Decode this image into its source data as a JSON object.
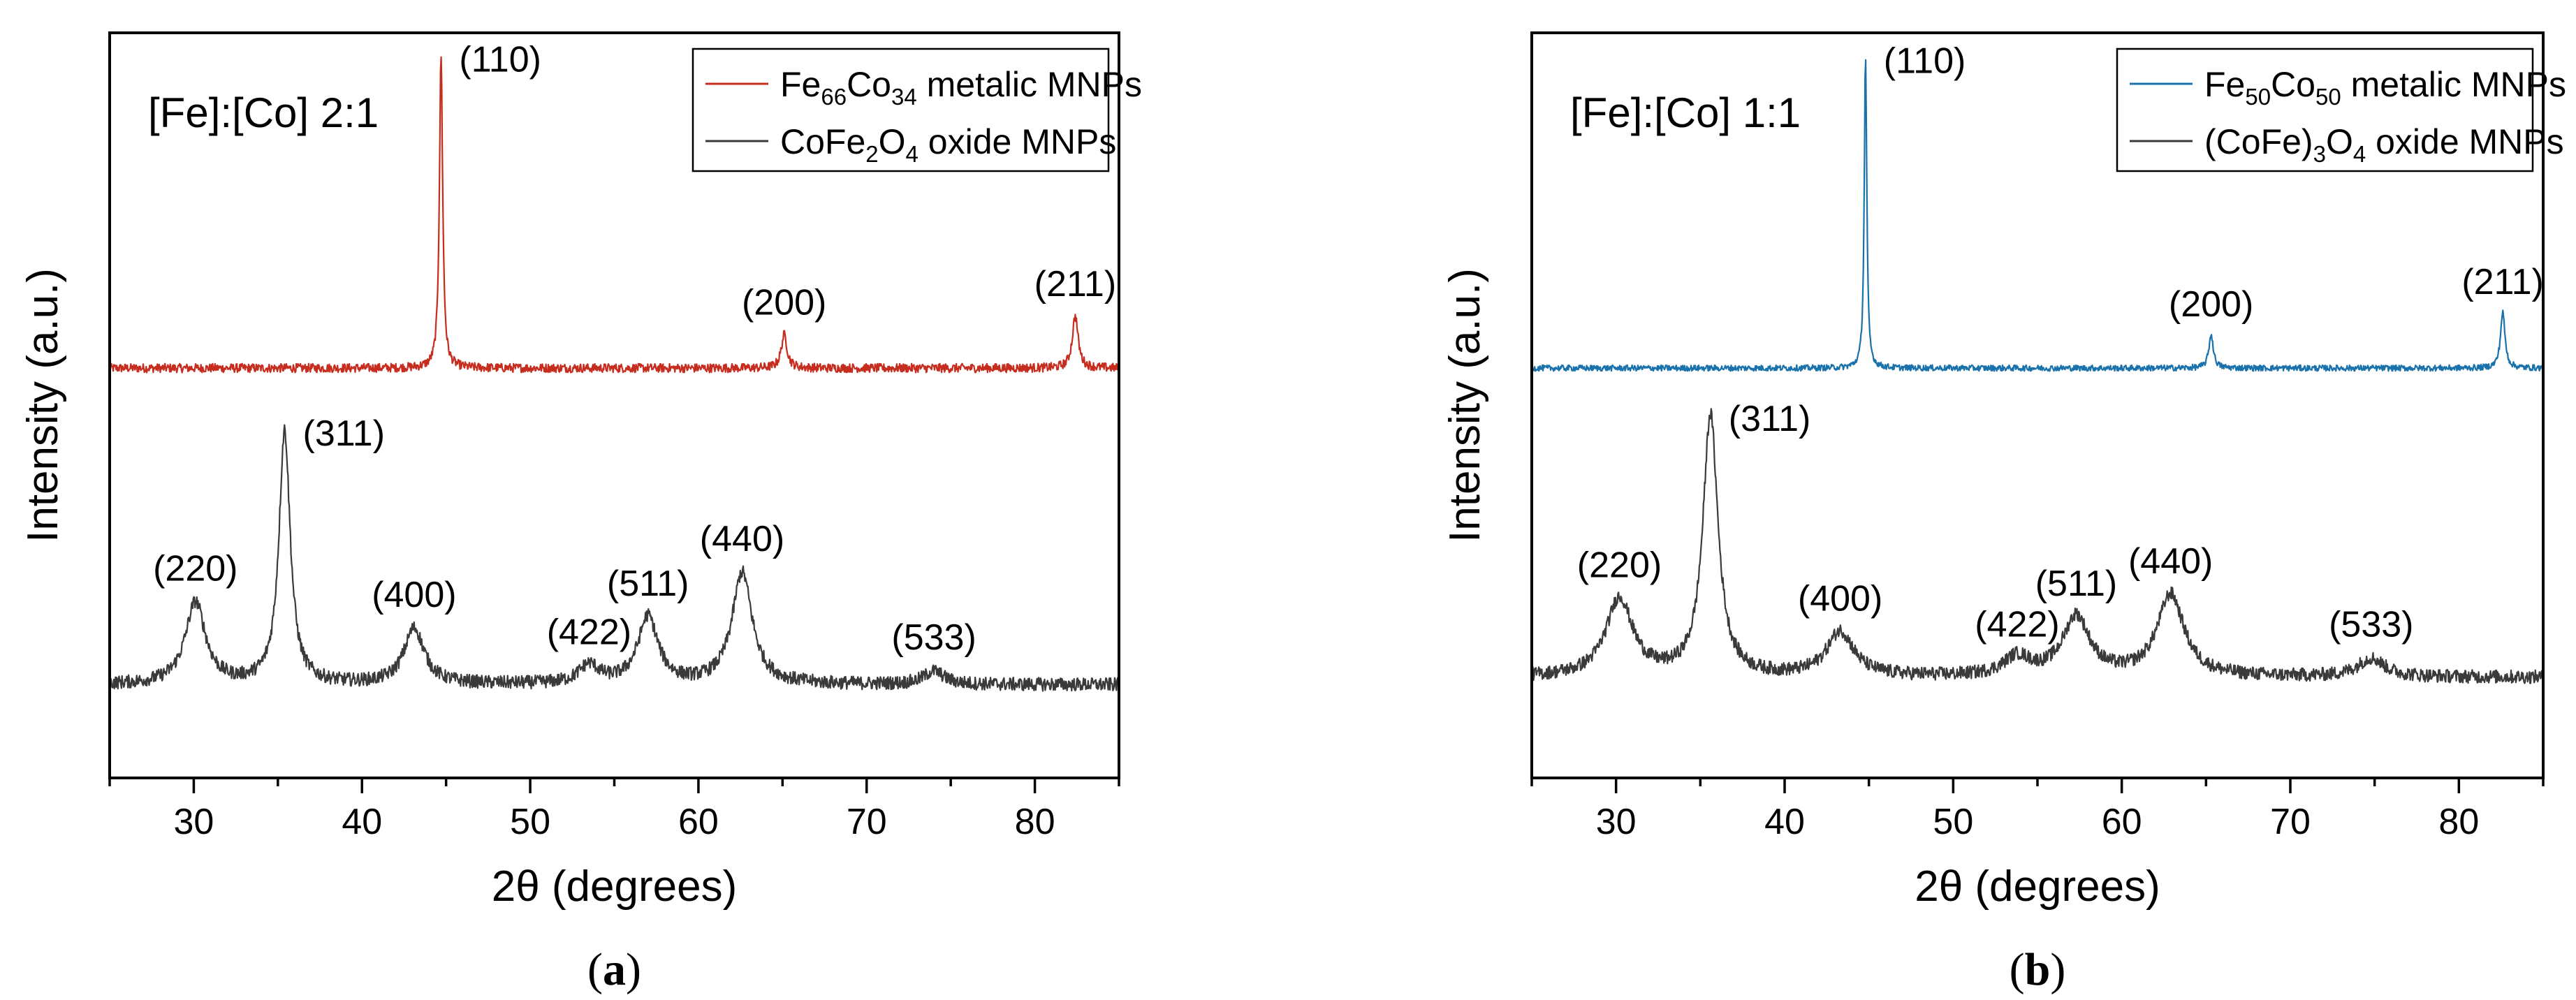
{
  "chart_data": [
    {
      "type": "line",
      "panel_label": "(a)",
      "panel_letter": "a",
      "xlabel": "2θ (degrees)",
      "ylabel": "Intensity (a.u.)",
      "xlim": [
        25,
        85
      ],
      "ylim": [
        0,
        100
      ],
      "xticks": [
        30,
        40,
        50,
        60,
        70,
        80
      ],
      "inset_text": "[Fe]:[Co] 2:1",
      "legend_position": "top-right",
      "series": [
        {
          "name": "Fe66Co34 metalic MNPs",
          "legend": {
            "pre": "Fe",
            "sub1": "66",
            "mid": "Co",
            "sub2": "34",
            "post": " metalic MNPs"
          },
          "color": "#c62d1f",
          "baseline": 55,
          "noise": 0.6,
          "peak_width": 0.13,
          "peaks": [
            {
              "x": 44.7,
              "height": 42,
              "label": "(110)"
            },
            {
              "x": 65.1,
              "height": 4.5,
              "label": "(200)"
            },
            {
              "x": 82.4,
              "height": 7,
              "label": "(211)"
            }
          ]
        },
        {
          "name": "CoFe2O4 oxide MNPs",
          "legend": {
            "pre": "CoFe",
            "sub1": "2",
            "mid": "O",
            "sub2": "4",
            "post": " oxide MNPs"
          },
          "color": "#3a3a3a",
          "baseline": 12.5,
          "noise": 0.9,
          "peak_width": 0.45,
          "peaks": [
            {
              "x": 30.1,
              "height": 11,
              "label": "(220)"
            },
            {
              "x": 35.4,
              "height": 34,
              "label": "(311)"
            },
            {
              "x": 43.1,
              "height": 7.5,
              "label": "(400)"
            },
            {
              "x": 53.5,
              "height": 2.5,
              "label": "(422)"
            },
            {
              "x": 57.0,
              "height": 9,
              "label": "(511)"
            },
            {
              "x": 62.6,
              "height": 15,
              "label": "(440)"
            },
            {
              "x": 74.0,
              "height": 1.8,
              "label": "(533)"
            }
          ]
        }
      ]
    },
    {
      "type": "line",
      "panel_label": "(b)",
      "panel_letter": "b",
      "xlabel": "2θ (degrees)",
      "ylabel": "Intensity (a.u.)",
      "xlim": [
        25,
        85
      ],
      "ylim": [
        0,
        100
      ],
      "xticks": [
        30,
        40,
        50,
        60,
        70,
        80
      ],
      "inset_text": "[Fe]:[Co] 1:1",
      "legend_position": "top-right",
      "series": [
        {
          "name": "Fe50Co50 metalic MNPs",
          "legend": {
            "pre": "Fe",
            "sub1": "50",
            "mid": "Co",
            "sub2": "50",
            "post": " metalic MNPs"
          },
          "color": "#1a72ac",
          "baseline": 55,
          "noise": 0.4,
          "peak_width": 0.1,
          "peaks": [
            {
              "x": 44.8,
              "height": 42,
              "label": "(110)"
            },
            {
              "x": 65.3,
              "height": 4.5,
              "label": "(200)"
            },
            {
              "x": 82.6,
              "height": 7.5,
              "label": "(211)"
            }
          ]
        },
        {
          "name": "(CoFe)3O4 oxide MNPs",
          "legend": {
            "pre": "(CoFe)",
            "sub1": "3",
            "mid": "O",
            "sub2": "4",
            "post": " oxide MNPs"
          },
          "color": "#3a3a3a",
          "baseline": 13.5,
          "noise": 0.9,
          "peak_width": 0.6,
          "peaks": [
            {
              "x": 30.2,
              "height": 10.5,
              "label": "(220)"
            },
            {
              "x": 35.6,
              "height": 35,
              "label": "(311)"
            },
            {
              "x": 43.3,
              "height": 6,
              "label": "(400)"
            },
            {
              "x": 53.8,
              "height": 2.5,
              "label": "(422)"
            },
            {
              "x": 57.3,
              "height": 8,
              "label": "(511)"
            },
            {
              "x": 62.9,
              "height": 11,
              "label": "(440)"
            },
            {
              "x": 74.8,
              "height": 2.5,
              "label": "(533)"
            }
          ]
        }
      ]
    }
  ]
}
